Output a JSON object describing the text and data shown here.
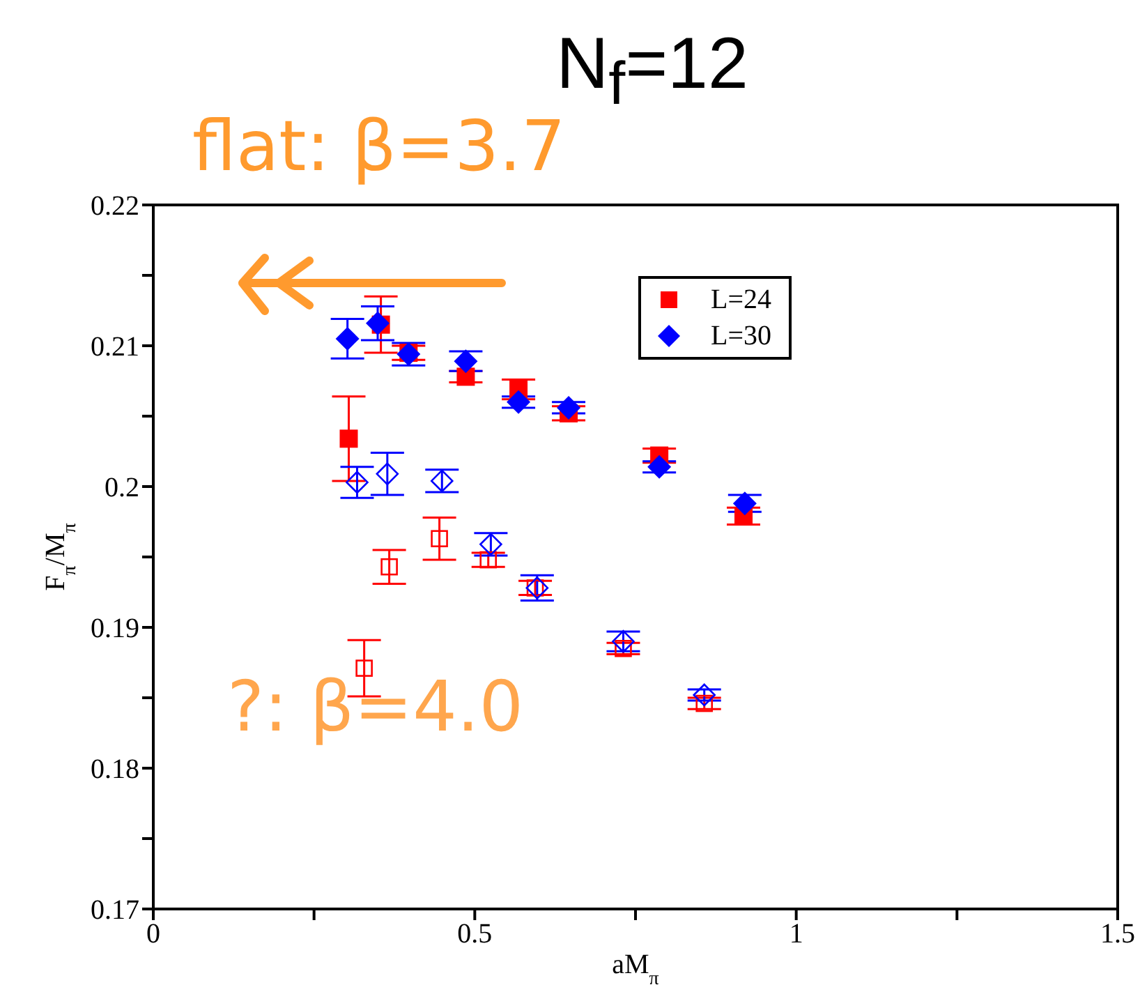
{
  "chart_data": {
    "type": "scatter",
    "title": "N$_{f}$=12",
    "xlabel": "aM$_{π}$",
    "ylabel": "F$_{π}$/M$_{π}$",
    "annotations": [
      "flat: β=3.7",
      "?: β=4.0"
    ],
    "xlim": [
      0,
      1.5
    ],
    "xticks": [
      0,
      0.5,
      1,
      1.5,
      {
        "value": 0.25,
        "label": null
      },
      {
        "value": 0.75,
        "label": null
      },
      {
        "value": 1.25,
        "label": null
      }
    ],
    "ylim": [
      0.17,
      0.22
    ],
    "yticks": [
      0.17,
      0.18,
      0.19,
      0.2,
      0.21,
      0.22,
      {
        "value": 0.175,
        "label": null
      },
      {
        "value": 0.185,
        "label": null
      },
      {
        "value": 0.195,
        "label": null
      },
      {
        "value": 0.205,
        "label": null
      },
      {
        "value": 0.215,
        "label": null
      }
    ],
    "legend": "top right",
    "series": [
      {
        "name": "L=24",
        "color": "#ff0000",
        "marker": "square",
        "x": [
          0.304,
          0.354,
          0.397,
          0.486,
          0.568,
          0.646,
          0.787,
          0.918
        ],
        "values": [
          0.2034,
          0.2115,
          0.2095,
          0.2078,
          0.2069,
          0.2052,
          0.2022,
          0.1979
        ],
        "errors": [
          0.003,
          0.002,
          0.0005,
          0.0004,
          0.0007,
          0.0005,
          0.0005,
          0.0006
        ]
      },
      {
        "name": "L=30",
        "color": "#0000ff",
        "marker": "diamond",
        "x": [
          0.302,
          0.349,
          0.397,
          0.486,
          0.568,
          0.646,
          0.787,
          0.92
        ],
        "values": [
          0.2105,
          0.2116,
          0.2094,
          0.2089,
          0.206,
          0.2056,
          0.2014,
          0.1988
        ],
        "errors": [
          0.0014,
          0.0012,
          0.0008,
          0.0007,
          0.0004,
          0.0004,
          0.0004,
          0.0006
        ]
      },
      {
        "color": "#ff0000",
        "marker": "square",
        "x": [
          0.328,
          0.367,
          0.445,
          0.521,
          0.594,
          0.731,
          0.857
        ],
        "values": [
          0.1871,
          0.1943,
          0.1963,
          0.1948,
          0.1928,
          0.1885,
          0.1846
        ],
        "errors": [
          0.002,
          0.0012,
          0.0015,
          0.0005,
          0.0005,
          0.0004,
          0.0004
        ]
      },
      {
        "color": "#0000ff",
        "marker": "diamond",
        "x": [
          0.317,
          0.364,
          0.449,
          0.525,
          0.597,
          0.731,
          0.857
        ],
        "values": [
          0.2003,
          0.2009,
          0.2004,
          0.1959,
          0.1928,
          0.189,
          0.1852
        ],
        "errors": [
          0.0011,
          0.0015,
          0.0008,
          0.0008,
          0.0009,
          0.0007,
          0.0004
        ]
      }
    ]
  }
}
